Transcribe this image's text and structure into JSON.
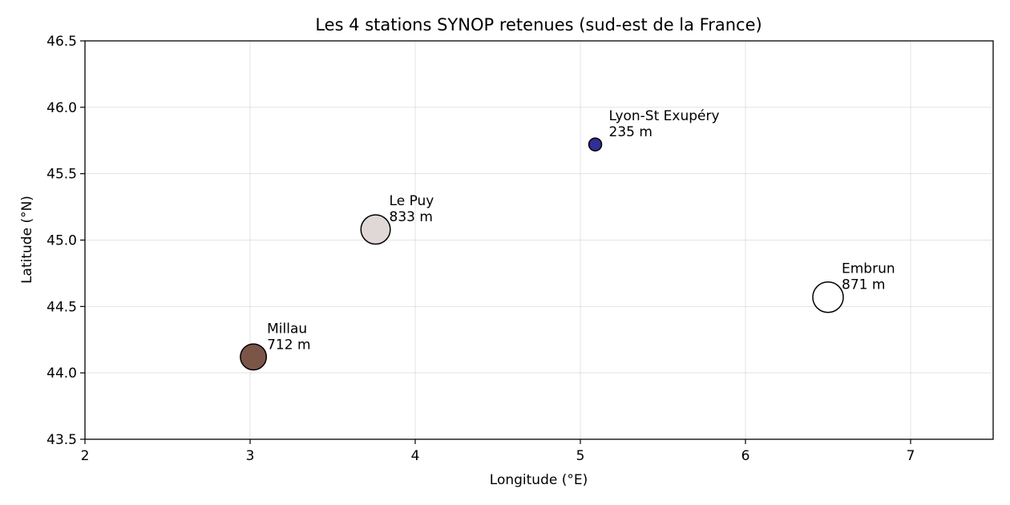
{
  "chart_data": {
    "type": "scatter",
    "title": "Les 4 stations SYNOP retenues (sud-est de la France)",
    "xlabel": "Longitude (°E)",
    "ylabel": "Latitude (°N)",
    "xlim": [
      2,
      7.5
    ],
    "ylim": [
      43.5,
      46.5
    ],
    "xticks": [
      2,
      3,
      4,
      5,
      6,
      7
    ],
    "yticks": [
      43.5,
      44.0,
      44.5,
      45.0,
      45.5,
      46.0,
      46.5
    ],
    "grid": true,
    "size_encodes": "altitude",
    "color_encodes": "altitude",
    "points": [
      {
        "name": "Millau",
        "x": 3.02,
        "y": 44.12,
        "altitude": 712,
        "label": "712 m",
        "color": "#7b5548"
      },
      {
        "name": "Le Puy",
        "x": 3.76,
        "y": 45.08,
        "altitude": 833,
        "label": "833 m",
        "color": "#e0d8d6"
      },
      {
        "name": "Lyon-St Exupéry",
        "x": 5.09,
        "y": 45.72,
        "altitude": 235,
        "label": "235 m",
        "color": "#2f2f94"
      },
      {
        "name": "Embrun",
        "x": 6.5,
        "y": 44.57,
        "altitude": 871,
        "label": "871 m",
        "color": "#ffffff"
      }
    ]
  }
}
